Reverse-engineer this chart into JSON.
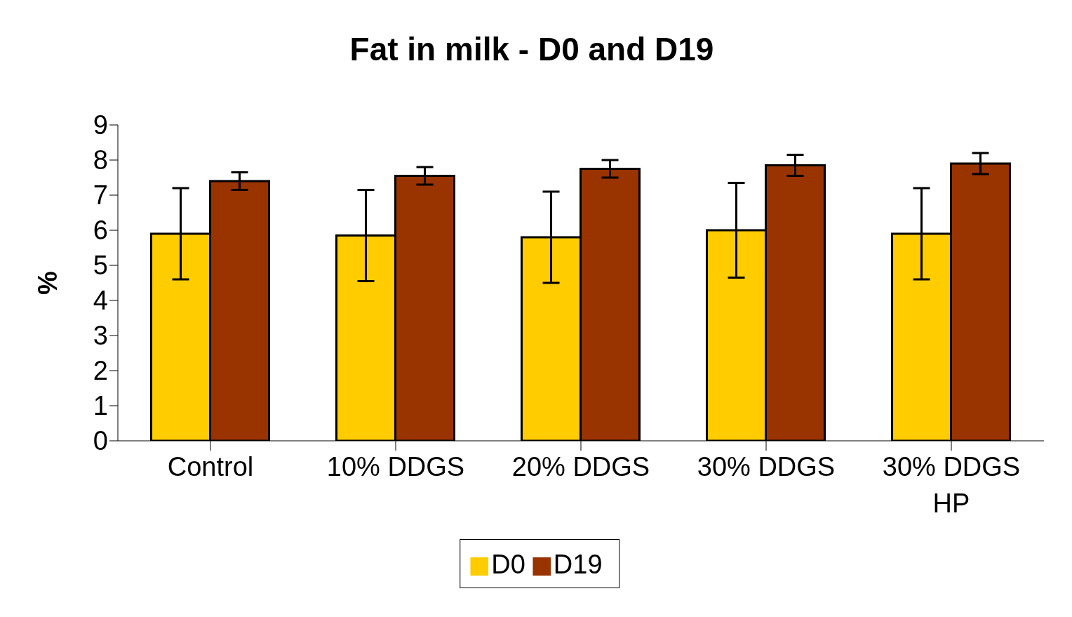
{
  "chart_data": {
    "type": "bar",
    "title": "Fat in milk - D0 and D19",
    "ylabel": "%",
    "categories": [
      "Control",
      "10% DDGS",
      "20% DDGS",
      "30% DDGS",
      "30% DDGS HP"
    ],
    "series": [
      {
        "name": "D0",
        "color": "#ffcc00",
        "values": [
          5.9,
          5.85,
          5.8,
          6.0,
          5.9
        ],
        "errors": [
          1.3,
          1.3,
          1.3,
          1.35,
          1.3
        ]
      },
      {
        "name": "D19",
        "color": "#993300",
        "values": [
          7.4,
          7.55,
          7.75,
          7.85,
          7.9
        ],
        "errors": [
          0.25,
          0.25,
          0.25,
          0.3,
          0.3
        ]
      }
    ],
    "ylim": [
      0,
      9
    ],
    "yticks": [
      0,
      1,
      2,
      3,
      4,
      5,
      6,
      7,
      8,
      9
    ],
    "grid": false,
    "legend": "bottom"
  }
}
